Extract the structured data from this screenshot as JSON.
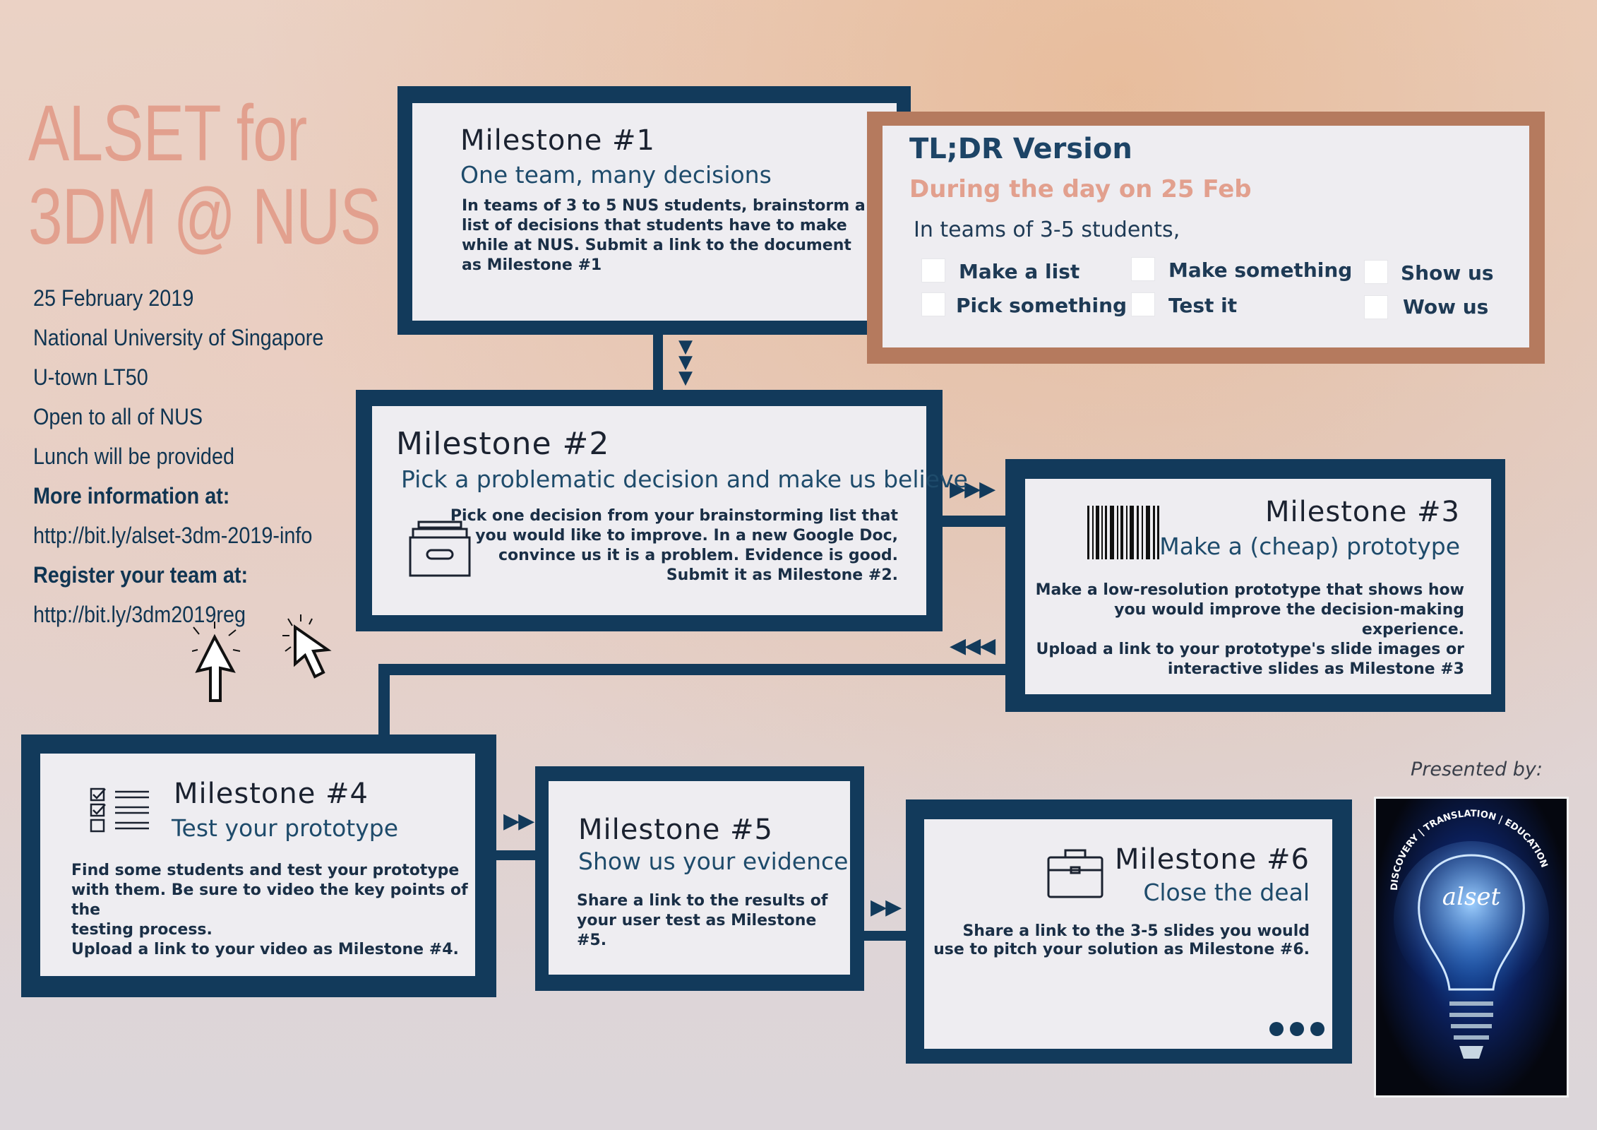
{
  "header": {
    "title_line1": "ALSET for",
    "title_line2": "3DM @ NUS"
  },
  "event_info": {
    "date": "25 February 2019",
    "venue": "National University of Singapore",
    "room": "U-town LT50",
    "audience": "Open to all of NUS",
    "lunch": "Lunch will be provided",
    "more_info_label": "More information at:",
    "more_info_link": "http://bit.ly/alset-3dm-2019-info",
    "register_label": "Register your team at:",
    "register_link": "http://bit.ly/3dm2019reg"
  },
  "tldr": {
    "title": "TL;DR Version",
    "subtitle": "During the day on 25 Feb",
    "intro": "In teams of 3-5 students,",
    "items": [
      "Make a list",
      "Make something",
      "Show us",
      "Pick something",
      "Test it",
      "Wow us"
    ]
  },
  "milestones": [
    {
      "title": "Milestone #1",
      "subtitle": "One team, many decisions",
      "body": "In teams of 3 to 5 NUS students, brainstorm a\nlist of decisions that students have to make\nwhile at NUS. Submit a link to the document\nas Milestone #1"
    },
    {
      "title": "Milestone #2",
      "subtitle": "Pick a problematic decision and make us believe",
      "body": "Pick one decision from your brainstorming list that\nyou would like to improve. In a new Google Doc,\nconvince us it is a problem. Evidence is good.\nSubmit it as Milestone #2."
    },
    {
      "title": "Milestone #3",
      "subtitle": "Make a (cheap) prototype",
      "body": "Make a low-resolution prototype that shows how\nyou would improve the decision-making experience.\nUpload a link to your prototype's slide images or\ninteractive slides as Milestone #3"
    },
    {
      "title": "Milestone #4",
      "subtitle": "Test your prototype",
      "body": "Find some students and test your prototype\nwith them. Be sure to video the key points of the\ntesting process.\nUpload a link to your video as Milestone #4."
    },
    {
      "title": "Milestone #5",
      "subtitle": "Show us your evidence",
      "body": "Share a link to the results of\nyour user test as Milestone #5."
    },
    {
      "title": "Milestone #6",
      "subtitle": "Close the deal",
      "body": "Share a link to the 3-5 slides you would\nuse to pitch your solution as Milestone #6."
    }
  ],
  "presenter": {
    "label": "Presented by:",
    "poster_arc_text": "DISCOVERY | TRANSLATION | EDUCATION",
    "poster_logo_text": "alset"
  },
  "icons": [
    "archive-box-icon",
    "barcode-icon",
    "checklist-icon",
    "briefcase-icon",
    "cursor-icon",
    "ellipsis-icon"
  ],
  "colors": {
    "navy": "#123a5b",
    "copper": "#b57a5e",
    "salmon": "#e2a08e",
    "card": "#eeedf1"
  }
}
